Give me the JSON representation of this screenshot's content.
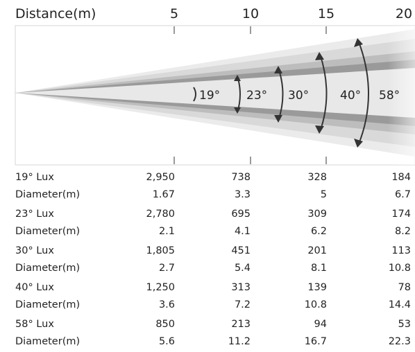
{
  "header": {
    "distance_label": "Distance(m)",
    "ticks": [
      "5",
      "10",
      "15",
      "20"
    ]
  },
  "beam": {
    "angles": [
      "19°",
      "23°",
      "30°",
      "40°",
      "58°"
    ],
    "colors": {
      "outer": "#ebebeb",
      "band2": "#d9d9d9",
      "band3": "#bdbdbd",
      "band4": "#9a9a9a",
      "core": "#e8e8e8",
      "arrows": "#333333"
    }
  },
  "rows": [
    {
      "label": "19° Lux",
      "values": [
        "2,950",
        "738",
        "328",
        "184"
      ]
    },
    {
      "label": "Diameter(m)",
      "values": [
        "1.67",
        "3.3",
        "5",
        "6.7"
      ]
    },
    {
      "label": "23° Lux",
      "values": [
        "2,780",
        "695",
        "309",
        "174"
      ]
    },
    {
      "label": "Diameter(m)",
      "values": [
        "2.1",
        "4.1",
        "6.2",
        "8.2"
      ]
    },
    {
      "label": "30° Lux",
      "values": [
        "1,805",
        "451",
        "201",
        "113"
      ]
    },
    {
      "label": "Diameter(m)",
      "values": [
        "2.7",
        "5.4",
        "8.1",
        "10.8"
      ]
    },
    {
      "label": "40° Lux",
      "values": [
        "1,250",
        "313",
        "139",
        "78"
      ]
    },
    {
      "label": "Diameter(m)",
      "values": [
        "3.6",
        "7.2",
        "10.8",
        "14.4"
      ]
    },
    {
      "label": "58° Lux",
      "values": [
        "850",
        "213",
        "94",
        "53"
      ]
    },
    {
      "label": "Diameter(m)",
      "values": [
        "5.6",
        "11.2",
        "16.7",
        "22.3"
      ]
    }
  ]
}
